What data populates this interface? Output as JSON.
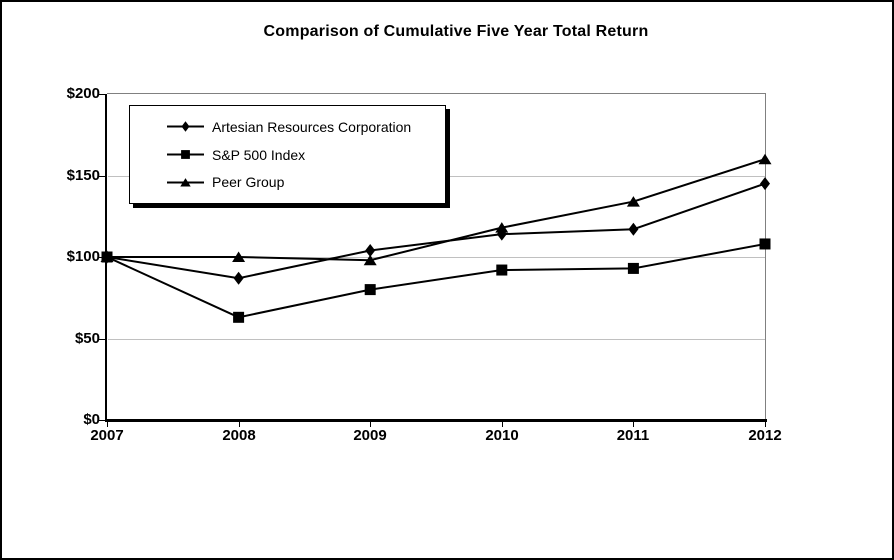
{
  "chart_data": {
    "type": "line",
    "title": "Comparison of Cumulative Five Year Total Return",
    "categories": [
      "2007",
      "2008",
      "2009",
      "2010",
      "2011",
      "2012"
    ],
    "series": [
      {
        "name": "Artesian Resources Corporation",
        "marker": "diamond",
        "values": [
          100,
          87,
          104,
          114,
          117,
          145
        ]
      },
      {
        "name": "S&P 500 Index",
        "marker": "square",
        "values": [
          100,
          63,
          80,
          92,
          93,
          108
        ]
      },
      {
        "name": "Peer Group",
        "marker": "triangle",
        "values": [
          100,
          100,
          98,
          118,
          134,
          160
        ]
      }
    ],
    "xlabel": "",
    "ylabel": "",
    "ylim": [
      0,
      200
    ],
    "y_tick_step": 50,
    "y_ticks": [
      "$0",
      "$50",
      "$100",
      "$150",
      "$200"
    ],
    "grid": true,
    "legend_position": "top-left-inside",
    "colors": {
      "series": "#000000",
      "gridline": "#c0c0c0",
      "plot_border": "#808080",
      "axis": "#000000",
      "background": "#ffffff"
    }
  }
}
